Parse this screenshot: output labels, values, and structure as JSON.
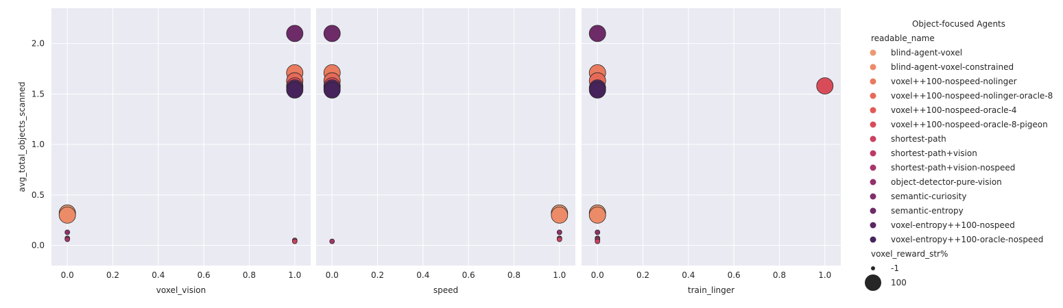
{
  "chart_data": {
    "type": "scatter",
    "ylabel": "avg_total_objects_scanned",
    "ylim": [
      -0.2,
      2.35
    ],
    "yticks": [
      "0.0",
      "0.5",
      "1.0",
      "1.5",
      "2.0"
    ],
    "xlim": [
      -0.07,
      1.07
    ],
    "xticks": [
      "0.0",
      "0.2",
      "0.4",
      "0.6",
      "0.8",
      "1.0"
    ],
    "grid": true,
    "background": "#eaeaf2",
    "legend_placement": "right",
    "panels": [
      {
        "xlabel": "voxel_vision",
        "points": [
          {
            "x": 0.0,
            "y": 0.32,
            "size": 100,
            "series": "blind-agent-voxel"
          },
          {
            "x": 0.0,
            "y": 0.3,
            "size": 100,
            "series": "blind-agent-voxel-constrained"
          },
          {
            "x": 0.0,
            "y": 0.13,
            "size": -1,
            "series": "object-detector-pure-vision"
          },
          {
            "x": 0.0,
            "y": 0.07,
            "size": -1,
            "series": "shortest-path+vision"
          },
          {
            "x": 0.0,
            "y": 0.06,
            "size": -1,
            "series": "shortest-path+vision-nospeed"
          },
          {
            "x": 1.0,
            "y": 2.1,
            "size": 100,
            "series": "semantic-entropy"
          },
          {
            "x": 1.0,
            "y": 1.71,
            "size": 100,
            "series": "voxel++100-nospeed-nolinger"
          },
          {
            "x": 1.0,
            "y": 1.63,
            "size": 100,
            "series": "voxel++100-nospeed-nolinger-oracle-8"
          },
          {
            "x": 1.0,
            "y": 1.58,
            "size": 100,
            "series": "voxel++100-nospeed-oracle-8-pigeon"
          },
          {
            "x": 1.0,
            "y": 1.56,
            "size": 100,
            "series": "voxel-entropy++100-nospeed"
          },
          {
            "x": 1.0,
            "y": 1.54,
            "size": 100,
            "series": "voxel-entropy++100-oracle-nospeed"
          },
          {
            "x": 1.0,
            "y": 0.05,
            "size": -1,
            "series": "shortest-path+vision"
          },
          {
            "x": 1.0,
            "y": 0.04,
            "size": -1,
            "series": "shortest-path"
          }
        ]
      },
      {
        "xlabel": "speed",
        "points": [
          {
            "x": 0.0,
            "y": 2.1,
            "size": 100,
            "series": "semantic-entropy"
          },
          {
            "x": 0.0,
            "y": 1.71,
            "size": 100,
            "series": "voxel++100-nospeed-nolinger"
          },
          {
            "x": 0.0,
            "y": 1.63,
            "size": 100,
            "series": "voxel++100-nospeed-nolinger-oracle-8"
          },
          {
            "x": 0.0,
            "y": 1.58,
            "size": 100,
            "series": "voxel++100-nospeed-oracle-8-pigeon"
          },
          {
            "x": 0.0,
            "y": 1.56,
            "size": 100,
            "series": "voxel-entropy++100-nospeed"
          },
          {
            "x": 0.0,
            "y": 1.54,
            "size": 100,
            "series": "voxel-entropy++100-oracle-nospeed"
          },
          {
            "x": 0.0,
            "y": 0.04,
            "size": -1,
            "series": "shortest-path+vision-nospeed"
          },
          {
            "x": 1.0,
            "y": 0.32,
            "size": 100,
            "series": "blind-agent-voxel"
          },
          {
            "x": 1.0,
            "y": 0.3,
            "size": 100,
            "series": "blind-agent-voxel-constrained"
          },
          {
            "x": 1.0,
            "y": 0.13,
            "size": -1,
            "series": "object-detector-pure-vision"
          },
          {
            "x": 1.0,
            "y": 0.07,
            "size": -1,
            "series": "shortest-path+vision"
          },
          {
            "x": 1.0,
            "y": 0.06,
            "size": -1,
            "series": "shortest-path"
          }
        ]
      },
      {
        "xlabel": "train_linger",
        "points": [
          {
            "x": 0.0,
            "y": 2.1,
            "size": 100,
            "series": "semantic-entropy"
          },
          {
            "x": 0.0,
            "y": 1.71,
            "size": 100,
            "series": "voxel++100-nospeed-nolinger"
          },
          {
            "x": 0.0,
            "y": 1.63,
            "size": 100,
            "series": "voxel++100-nospeed-nolinger-oracle-8"
          },
          {
            "x": 0.0,
            "y": 1.56,
            "size": 100,
            "series": "voxel-entropy++100-nospeed"
          },
          {
            "x": 0.0,
            "y": 1.54,
            "size": 100,
            "series": "voxel-entropy++100-oracle-nospeed"
          },
          {
            "x": 0.0,
            "y": 0.32,
            "size": 100,
            "series": "blind-agent-voxel"
          },
          {
            "x": 0.0,
            "y": 0.3,
            "size": 100,
            "series": "blind-agent-voxel-constrained"
          },
          {
            "x": 0.0,
            "y": 0.13,
            "size": -1,
            "series": "object-detector-pure-vision"
          },
          {
            "x": 0.0,
            "y": 0.07,
            "size": -1,
            "series": "shortest-path+vision"
          },
          {
            "x": 0.0,
            "y": 0.06,
            "size": -1,
            "series": "shortest-path+vision-nospeed"
          },
          {
            "x": 0.0,
            "y": 0.04,
            "size": -1,
            "series": "shortest-path"
          },
          {
            "x": 1.0,
            "y": 1.58,
            "size": 100,
            "series": "voxel++100-nospeed-oracle-8-pigeon"
          }
        ]
      }
    ],
    "legend": {
      "title": "Object-focused Agents",
      "hue_title": "readable_name",
      "hue_entries": [
        {
          "name": "blind-agent-voxel",
          "color": "#eb9b73"
        },
        {
          "name": "blind-agent-voxel-constrained",
          "color": "#ec8b68"
        },
        {
          "name": "voxel++100-nospeed-nolinger",
          "color": "#e97b5f"
        },
        {
          "name": "voxel++100-nospeed-nolinger-oracle-8",
          "color": "#e66a58"
        },
        {
          "name": "voxel++100-nospeed-oracle-4",
          "color": "#e15a57"
        },
        {
          "name": "voxel++100-nospeed-oracle-8-pigeon",
          "color": "#d84c5a"
        },
        {
          "name": "shortest-path",
          "color": "#cb4161"
        },
        {
          "name": "shortest-path+vision",
          "color": "#bb3a66"
        },
        {
          "name": "shortest-path+vision-nospeed",
          "color": "#a8356b"
        },
        {
          "name": "object-detector-pure-vision",
          "color": "#94316d"
        },
        {
          "name": "semantic-curiosity",
          "color": "#812e6c"
        },
        {
          "name": "semantic-entropy",
          "color": "#6d2b68"
        },
        {
          "name": "voxel-entropy++100-nospeed",
          "color": "#5a2862"
        },
        {
          "name": "voxel-entropy++100-oracle-nospeed",
          "color": "#46235a"
        }
      ],
      "size_title": "voxel_reward_str%",
      "size_entries": [
        "-1",
        "100"
      ]
    }
  }
}
